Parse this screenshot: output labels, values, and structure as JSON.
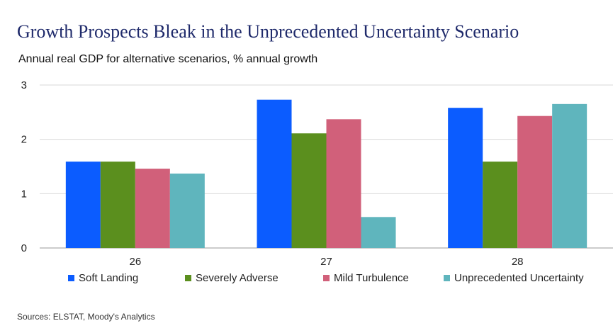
{
  "title": "Growth Prospects Bleak in the Unprecedented Uncertainty Scenario",
  "subtitle": "Annual real GDP for alternative scenarios, % annual growth",
  "source": "Sources: ELSTAT, Moody's Analytics",
  "chart_data": {
    "type": "bar",
    "categories": [
      "26",
      "27",
      "28"
    ],
    "ylim": [
      0,
      3
    ],
    "yticks": [
      "0",
      "1",
      "2",
      "3"
    ],
    "grid": true,
    "legend_position": "bottom",
    "series": [
      {
        "name": "Soft Landing",
        "color": "#0b5cff",
        "values": [
          1.59,
          2.73,
          2.58
        ]
      },
      {
        "name": "Severely Adverse",
        "color": "#5b8f1e",
        "values": [
          1.59,
          2.11,
          1.59
        ]
      },
      {
        "name": "Mild Turbulence",
        "color": "#d1607a",
        "values": [
          1.46,
          2.37,
          2.43
        ]
      },
      {
        "name": "Unprecedented Uncertainty",
        "color": "#5fb5bd",
        "values": [
          1.37,
          0.57,
          2.65
        ]
      }
    ]
  }
}
